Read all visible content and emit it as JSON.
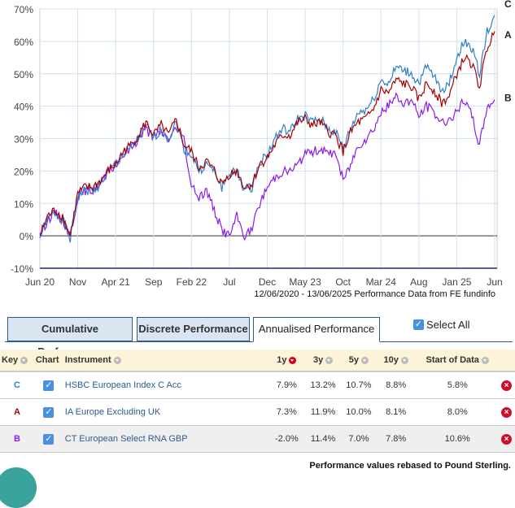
{
  "chart_data": {
    "type": "line",
    "yticks": [
      "70%",
      "60%",
      "50%",
      "40%",
      "30%",
      "20%",
      "10%",
      "0%",
      "-10%"
    ],
    "ylim": [
      -10,
      70
    ],
    "xticks": [
      "Jun 20",
      "Nov",
      "Apr 21",
      "Sep",
      "Feb 22",
      "Jul",
      "Dec",
      "May 23",
      "Oct",
      "Mar 24",
      "Aug",
      "Jan 25",
      "Jun"
    ],
    "caption": "12/06/2020 - 13/06/2025 Performance Data from FE fundinfo",
    "series": [
      {
        "key": "C",
        "color": "#2f7fc8",
        "values": [
          0,
          5,
          7,
          5,
          -1,
          12,
          14,
          14,
          16,
          20,
          22,
          25,
          27,
          30,
          34,
          30,
          33,
          30,
          35,
          27,
          25,
          20,
          22,
          20,
          15,
          19,
          20,
          14,
          15,
          23,
          25,
          30,
          33,
          32,
          36,
          37,
          35,
          36,
          33,
          32,
          27,
          33,
          38,
          39,
          42,
          48,
          47,
          52,
          51,
          50,
          47,
          52,
          49,
          45,
          47,
          55,
          60,
          58,
          50,
          63,
          68
        ]
      },
      {
        "key": "A",
        "color": "#a50000",
        "values": [
          0,
          6,
          8,
          6,
          0,
          13,
          15,
          15,
          17,
          20,
          22,
          26,
          28,
          31,
          35,
          31,
          34,
          31,
          36,
          28,
          26,
          21,
          23,
          20,
          16,
          19,
          20,
          15,
          16,
          22,
          24,
          28,
          31,
          31,
          35,
          36,
          34,
          35,
          32,
          31,
          26,
          32,
          35,
          36,
          39,
          45,
          44,
          48,
          47,
          46,
          42,
          47,
          45,
          41,
          43,
          50,
          55,
          53,
          46,
          58,
          63
        ]
      },
      {
        "key": "B",
        "color": "#8a1cf0",
        "values": [
          0,
          5,
          7,
          5,
          0,
          12,
          14,
          14,
          16,
          19,
          22,
          25,
          27,
          30,
          33,
          30,
          32,
          30,
          33,
          30,
          15,
          12,
          14,
          8,
          2,
          0,
          6,
          0,
          2,
          10,
          15,
          18,
          20,
          20,
          22,
          25,
          26,
          27,
          25,
          26,
          17,
          22,
          28,
          30,
          33,
          38,
          40,
          43,
          41,
          42,
          37,
          40,
          38,
          35,
          36,
          38,
          42,
          37,
          28,
          40,
          42
        ]
      }
    ]
  },
  "tabs": [
    "Cumulative Performance",
    "Discrete Performance",
    "Annualised Performance"
  ],
  "select_all": "Select All",
  "table": {
    "headers": [
      "Key",
      "Chart",
      "Instrument",
      "1y",
      "3y",
      "5y",
      "10y",
      "Start of Data"
    ],
    "rows": [
      {
        "key": "C",
        "key_color": "#2f7fc8",
        "instrument": "HSBC European Index C Acc",
        "y1": "7.9%",
        "y3": "13.2%",
        "y5": "10.7%",
        "y10": "8.8%",
        "start": "5.8%"
      },
      {
        "key": "A",
        "key_color": "#a50000",
        "instrument": "IA Europe Excluding UK",
        "y1": "7.3%",
        "y3": "11.9%",
        "y5": "10.0%",
        "y10": "8.1%",
        "start": "8.0%"
      },
      {
        "key": "B",
        "key_color": "#8a1cf0",
        "instrument": "CT European Select RNA GBP",
        "y1": "-2.0%",
        "y3": "11.4%",
        "y5": "7.0%",
        "y10": "7.8%",
        "start": "10.6%"
      }
    ]
  },
  "footer": "Performance values rebased to Pound Sterling."
}
